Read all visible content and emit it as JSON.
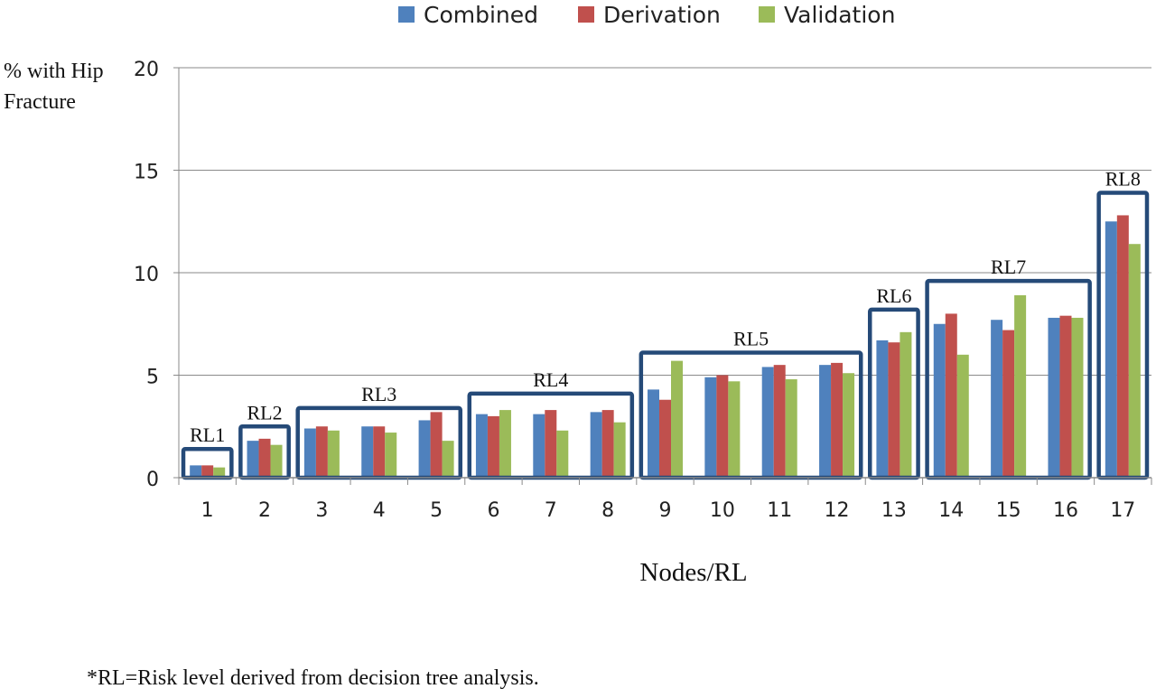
{
  "chart_data": {
    "type": "bar",
    "title": "",
    "xlabel": "Nodes/RL",
    "ylabel_lines": [
      "% with Hip",
      "Fracture"
    ],
    "ylim": [
      0,
      20
    ],
    "yticks": [
      0,
      5,
      10,
      15,
      20
    ],
    "grid": true,
    "legend_position": "top",
    "categories": [
      "1",
      "2",
      "3",
      "4",
      "5",
      "6",
      "7",
      "8",
      "9",
      "10",
      "11",
      "12",
      "13",
      "14",
      "15",
      "16",
      "17"
    ],
    "series": [
      {
        "name": "Combined",
        "color": "#4f81bd",
        "values": [
          0.6,
          1.8,
          2.4,
          2.5,
          2.8,
          3.1,
          3.1,
          3.2,
          4.3,
          4.9,
          5.4,
          5.5,
          6.7,
          7.5,
          7.7,
          7.8,
          12.5
        ]
      },
      {
        "name": "Derivation",
        "color": "#c0504d",
        "values": [
          0.6,
          1.9,
          2.5,
          2.5,
          3.2,
          3.0,
          3.3,
          3.3,
          3.8,
          5.0,
          5.5,
          5.6,
          6.6,
          8.0,
          7.2,
          7.9,
          12.8
        ]
      },
      {
        "name": "Validation",
        "color": "#9bbb59",
        "values": [
          0.5,
          1.6,
          2.3,
          2.2,
          1.8,
          3.3,
          2.3,
          2.7,
          5.7,
          4.7,
          4.8,
          5.1,
          7.1,
          6.0,
          8.9,
          7.8,
          11.4
        ]
      }
    ],
    "risk_levels": [
      {
        "label": "RL1",
        "from": 1,
        "to": 1,
        "top": 1.4
      },
      {
        "label": "RL2",
        "from": 2,
        "to": 2,
        "top": 2.5
      },
      {
        "label": "RL3",
        "from": 3,
        "to": 5,
        "top": 3.4
      },
      {
        "label": "RL4",
        "from": 6,
        "to": 8,
        "top": 4.1
      },
      {
        "label": "RL5",
        "from": 9,
        "to": 12,
        "top": 6.1
      },
      {
        "label": "RL6",
        "from": 13,
        "to": 13,
        "top": 8.2
      },
      {
        "label": "RL7",
        "from": 14,
        "to": 16,
        "top": 9.6
      },
      {
        "label": "RL8",
        "from": 17,
        "to": 17,
        "top": 13.9
      }
    ],
    "box_color": "#254a78",
    "footnote": "*RL=Risk level derived from decision tree analysis."
  }
}
